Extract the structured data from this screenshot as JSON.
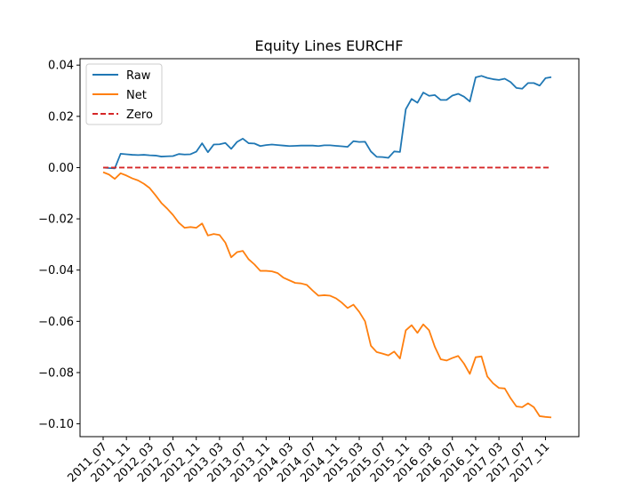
{
  "chart_data": {
    "type": "line",
    "title": "Equity Lines EURCHF",
    "xlabel": "",
    "ylabel": "",
    "ylim": [
      -0.105,
      0.0425
    ],
    "yticks": [
      0.04,
      0.02,
      0.0,
      -0.02,
      -0.04,
      -0.06,
      -0.08,
      -0.1
    ],
    "ytick_labels": [
      "0.04",
      "0.02",
      "0.00",
      "−0.02",
      "−0.04",
      "−0.06",
      "−0.08",
      "−0.10"
    ],
    "xtick_labels": [
      "2011_07",
      "2011_11",
      "2012_03",
      "2012_07",
      "2012_11",
      "2013_03",
      "2013_07",
      "2013_11",
      "2014_03",
      "2014_07",
      "2014_11",
      "2015_03",
      "2015_07",
      "2015_11",
      "2016_03",
      "2016_07",
      "2016_11",
      "2017_03",
      "2017_07",
      "2017_11"
    ],
    "x": [
      "2011_07",
      "2011_08",
      "2011_09",
      "2011_10",
      "2011_11",
      "2011_12",
      "2012_01",
      "2012_02",
      "2012_03",
      "2012_04",
      "2012_05",
      "2012_06",
      "2012_07",
      "2012_08",
      "2012_09",
      "2012_10",
      "2012_11",
      "2012_12",
      "2013_01",
      "2013_02",
      "2013_03",
      "2013_04",
      "2013_05",
      "2013_06",
      "2013_07",
      "2013_08",
      "2013_09",
      "2013_10",
      "2013_11",
      "2013_12",
      "2014_01",
      "2014_02",
      "2014_03",
      "2014_04",
      "2014_05",
      "2014_06",
      "2014_07",
      "2014_08",
      "2014_09",
      "2014_10",
      "2014_11",
      "2014_12",
      "2015_01",
      "2015_02",
      "2015_03",
      "2015_04",
      "2015_05",
      "2015_06",
      "2015_07",
      "2015_08",
      "2015_09",
      "2015_10",
      "2015_11",
      "2015_12",
      "2016_01",
      "2016_02",
      "2016_03",
      "2016_04",
      "2016_05",
      "2016_06",
      "2016_07",
      "2016_08",
      "2016_09",
      "2016_10",
      "2016_11",
      "2016_12",
      "2017_01",
      "2017_02",
      "2017_03",
      "2017_04",
      "2017_05",
      "2017_06",
      "2017_07",
      "2017_08",
      "2017_09",
      "2017_10",
      "2017_11",
      "2017_12"
    ],
    "series": [
      {
        "name": "Raw",
        "color": "#1f77b4",
        "style": "solid",
        "values": [
          0.0,
          -0.0002,
          -0.0003,
          0.0054,
          0.0052,
          0.005,
          0.0049,
          0.005,
          0.0048,
          0.0047,
          0.0043,
          0.0044,
          0.0045,
          0.0053,
          0.0051,
          0.0052,
          0.0062,
          0.0095,
          0.006,
          0.009,
          0.0091,
          0.0096,
          0.0073,
          0.01,
          0.0113,
          0.0095,
          0.0094,
          0.0084,
          0.0088,
          0.009,
          0.0088,
          0.0086,
          0.0084,
          0.0085,
          0.0086,
          0.0086,
          0.0086,
          0.0084,
          0.0087,
          0.0087,
          0.0085,
          0.0083,
          0.0081,
          0.0103,
          0.01,
          0.0101,
          0.0063,
          0.0042,
          0.0041,
          0.0038,
          0.0063,
          0.0061,
          0.0228,
          0.0268,
          0.0253,
          0.0293,
          0.028,
          0.0283,
          0.0264,
          0.0264,
          0.0281,
          0.0288,
          0.0277,
          0.0258,
          0.0352,
          0.0358,
          0.035,
          0.0345,
          0.0342,
          0.0347,
          0.0334,
          0.0311,
          0.0308,
          0.033,
          0.033,
          0.032,
          0.0349,
          0.0353
        ]
      },
      {
        "name": "Net",
        "color": "#ff7f0e",
        "style": "solid",
        "values": [
          -0.0018,
          -0.0027,
          -0.0044,
          -0.0022,
          -0.0031,
          -0.0042,
          -0.005,
          -0.0063,
          -0.008,
          -0.0108,
          -0.0138,
          -0.016,
          -0.0185,
          -0.0215,
          -0.0235,
          -0.0232,
          -0.0235,
          -0.0218,
          -0.0265,
          -0.0259,
          -0.0263,
          -0.0293,
          -0.035,
          -0.033,
          -0.0325,
          -0.0358,
          -0.0378,
          -0.0403,
          -0.0403,
          -0.0405,
          -0.0412,
          -0.043,
          -0.044,
          -0.045,
          -0.0452,
          -0.0458,
          -0.048,
          -0.05,
          -0.0498,
          -0.05,
          -0.051,
          -0.0527,
          -0.0548,
          -0.0535,
          -0.0563,
          -0.06,
          -0.0695,
          -0.072,
          -0.0726,
          -0.0733,
          -0.0718,
          -0.0745,
          -0.0635,
          -0.0615,
          -0.0645,
          -0.0612,
          -0.0635,
          -0.07,
          -0.0748,
          -0.0753,
          -0.0743,
          -0.0735,
          -0.0765,
          -0.0805,
          -0.074,
          -0.0737,
          -0.0815,
          -0.0842,
          -0.086,
          -0.0862,
          -0.09,
          -0.0932,
          -0.0935,
          -0.092,
          -0.0935,
          -0.097,
          -0.0973,
          -0.0975
        ]
      },
      {
        "name": "Zero",
        "color": "#d62728",
        "style": "dashed",
        "values_constant": 0
      }
    ],
    "grid": false,
    "legend_position": "upper-left"
  }
}
